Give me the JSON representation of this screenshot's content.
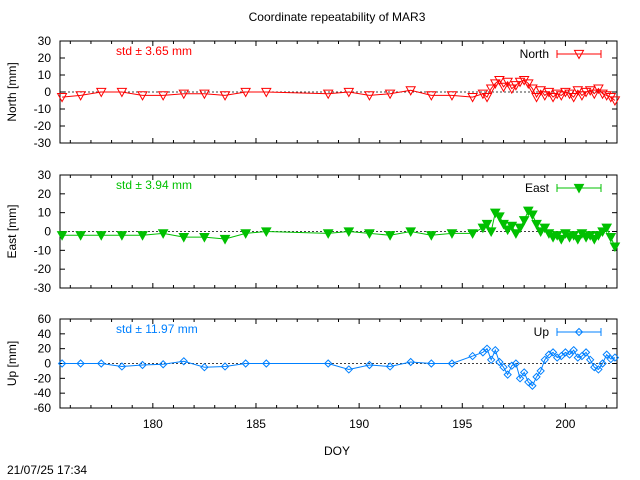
{
  "title": "Coordinate repeatability of MAR3",
  "timestamp": "21/07/25 17:34",
  "xlabel": "DOY",
  "chart_data": [
    {
      "type": "line",
      "component": "north",
      "title": "Coordinate repeatability of MAR3",
      "xlabel": "DOY",
      "ylabel": "North [mm]",
      "xlim": [
        175.5,
        202.5
      ],
      "ylim": [
        -30,
        30
      ],
      "yticks": [
        30,
        20,
        10,
        0,
        -10,
        -20,
        -30
      ],
      "xticks": [],
      "zero_line": true,
      "grid": false,
      "legend_position": "top-right",
      "color": "#ff0000",
      "marker": "open-triangle-down",
      "std_label": "std ± 3.65 mm",
      "series": [
        {
          "name": "North",
          "x": [
            175.6,
            176.5,
            177.5,
            178.5,
            179.5,
            180.5,
            181.5,
            182.5,
            183.5,
            184.5,
            185.5,
            188.5,
            189.5,
            190.5,
            191.5,
            192.5,
            193.5,
            194.5,
            195.5,
            196.0,
            196.2,
            196.4,
            196.6,
            196.8,
            197.0,
            197.2,
            197.4,
            197.6,
            197.8,
            198.0,
            198.2,
            198.4,
            198.6,
            198.8,
            199.0,
            199.2,
            199.4,
            199.6,
            199.8,
            200.0,
            200.2,
            200.4,
            200.6,
            200.8,
            201.0,
            201.2,
            201.4,
            201.6,
            201.8,
            202.0,
            202.2,
            202.4
          ],
          "y": [
            -3,
            -2,
            0,
            0,
            -2,
            -2,
            -1,
            -1,
            -2,
            0,
            0,
            -1,
            0,
            -2,
            -1,
            1,
            -2,
            -2,
            -3,
            -1,
            -3,
            2,
            5,
            7,
            3,
            6,
            2,
            4,
            6,
            7,
            5,
            2,
            -3,
            1,
            -2,
            0,
            -3,
            -1,
            -2,
            0,
            -1,
            -3,
            1,
            -2,
            0,
            1,
            -1,
            2,
            -1,
            -2,
            -3,
            -5
          ]
        }
      ]
    },
    {
      "type": "line",
      "component": "east",
      "xlabel": "DOY",
      "ylabel": "East [mm]",
      "xlim": [
        175.5,
        202.5
      ],
      "ylim": [
        -30,
        30
      ],
      "yticks": [
        30,
        20,
        10,
        0,
        -10,
        -20,
        -30
      ],
      "xticks": [],
      "zero_line": true,
      "grid": false,
      "legend_position": "top-right",
      "color": "#00c000",
      "marker": "filled-triangle-down",
      "std_label": "std ± 3.94 mm",
      "series": [
        {
          "name": "East",
          "x": [
            175.6,
            176.5,
            177.5,
            178.5,
            179.5,
            180.5,
            181.5,
            182.5,
            183.5,
            184.5,
            185.5,
            188.5,
            189.5,
            190.5,
            191.5,
            192.5,
            193.5,
            194.5,
            195.5,
            196.0,
            196.2,
            196.4,
            196.6,
            196.8,
            197.0,
            197.2,
            197.4,
            197.6,
            197.8,
            198.0,
            198.2,
            198.4,
            198.6,
            198.8,
            199.0,
            199.2,
            199.4,
            199.6,
            199.8,
            200.0,
            200.2,
            200.4,
            200.6,
            200.8,
            201.0,
            201.2,
            201.4,
            201.6,
            201.8,
            202.0,
            202.2,
            202.4
          ],
          "y": [
            -2,
            -2,
            -2,
            -2,
            -2,
            -1,
            -3,
            -3,
            -4,
            -1,
            0,
            -1,
            0,
            -1,
            -2,
            0,
            -2,
            -1,
            -1,
            2,
            4,
            0,
            10,
            8,
            4,
            1,
            3,
            -1,
            2,
            6,
            11,
            9,
            4,
            0,
            2,
            -1,
            -3,
            -2,
            -4,
            -1,
            -3,
            -2,
            -4,
            -1,
            -3,
            -2,
            -4,
            -2,
            0,
            2,
            -3,
            -8
          ]
        }
      ]
    },
    {
      "type": "line",
      "component": "up",
      "xlabel": "DOY",
      "ylabel": "Up [mm]",
      "xlim": [
        175.5,
        202.5
      ],
      "ylim": [
        -60,
        60
      ],
      "yticks": [
        60,
        40,
        20,
        0,
        -20,
        -40,
        -60
      ],
      "xticks": [
        180,
        185,
        190,
        195,
        200
      ],
      "zero_line": true,
      "grid": false,
      "legend_position": "top-right",
      "color": "#0080ff",
      "marker": "open-diamond",
      "std_label": "std ± 11.97 mm",
      "series": [
        {
          "name": "Up",
          "x": [
            175.6,
            176.5,
            177.5,
            178.5,
            179.5,
            180.5,
            181.5,
            182.5,
            183.5,
            184.5,
            185.5,
            188.5,
            189.5,
            190.5,
            191.5,
            192.5,
            193.5,
            194.5,
            195.5,
            196.0,
            196.2,
            196.4,
            196.6,
            196.8,
            197.0,
            197.2,
            197.4,
            197.6,
            197.8,
            198.0,
            198.2,
            198.4,
            198.6,
            198.8,
            199.0,
            199.2,
            199.4,
            199.6,
            199.8,
            200.0,
            200.2,
            200.4,
            200.6,
            200.8,
            201.0,
            201.2,
            201.4,
            201.6,
            201.8,
            202.0,
            202.2,
            202.4
          ],
          "y": [
            0,
            0,
            0,
            -4,
            -2,
            -1,
            3,
            -5,
            -4,
            0,
            0,
            0,
            -8,
            -2,
            -4,
            2,
            0,
            0,
            10,
            15,
            20,
            5,
            18,
            2,
            -5,
            -15,
            -3,
            0,
            -20,
            -12,
            -25,
            -30,
            -18,
            -10,
            5,
            12,
            15,
            8,
            10,
            15,
            12,
            18,
            8,
            10,
            15,
            5,
            -5,
            -8,
            0,
            12,
            6,
            8
          ]
        }
      ]
    }
  ]
}
